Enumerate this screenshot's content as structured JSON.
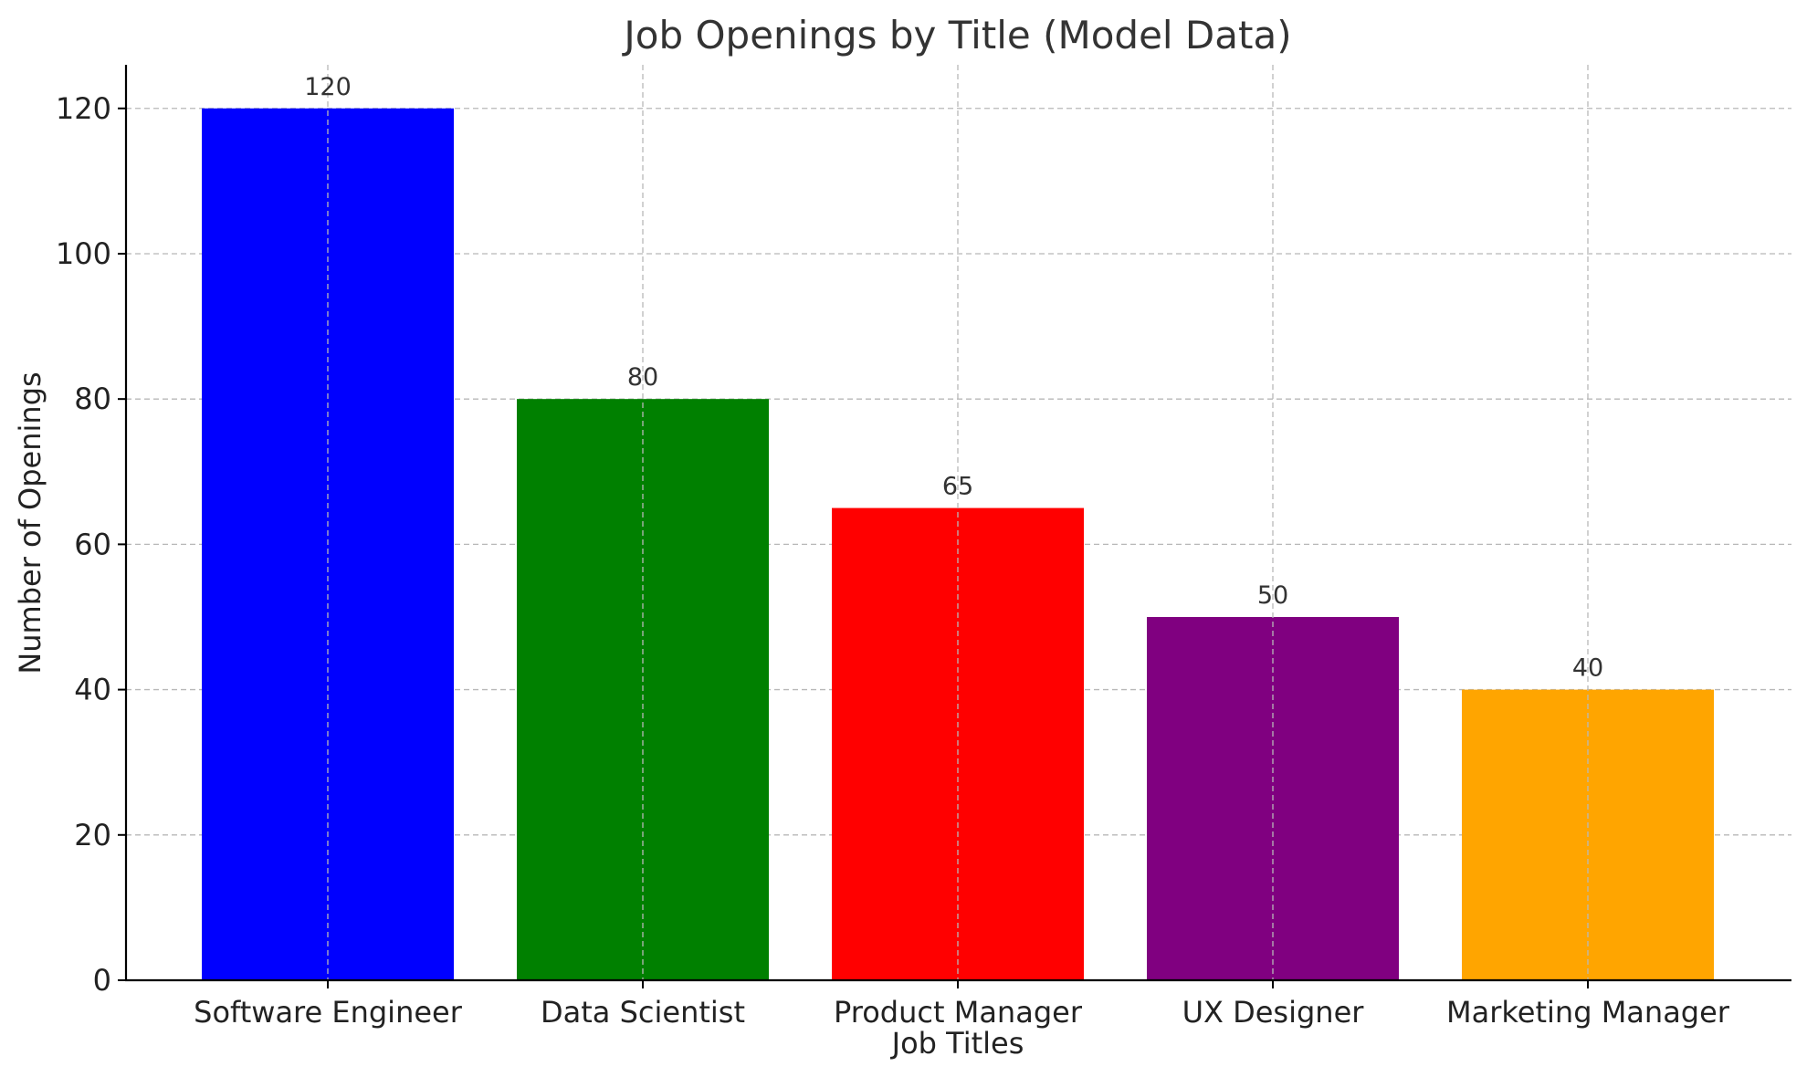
{
  "chart_data": {
    "type": "bar",
    "title": "Job Openings by Title (Model Data)",
    "xlabel": "Job Titles",
    "ylabel": "Number of Openings",
    "categories": [
      "Software Engineer",
      "Data Scientist",
      "Product Manager",
      "UX Designer",
      "Marketing Manager"
    ],
    "values": [
      120,
      80,
      65,
      50,
      40
    ],
    "data_labels": [
      "120",
      "80",
      "65",
      "50",
      "40"
    ],
    "colors": [
      "#0000ff",
      "#008000",
      "#ff0000",
      "#800080",
      "#ffa500"
    ],
    "ylim": [
      0,
      126
    ],
    "yticks": [
      0,
      20,
      40,
      60,
      80,
      100,
      120
    ],
    "grid": true,
    "legend": "none"
  }
}
